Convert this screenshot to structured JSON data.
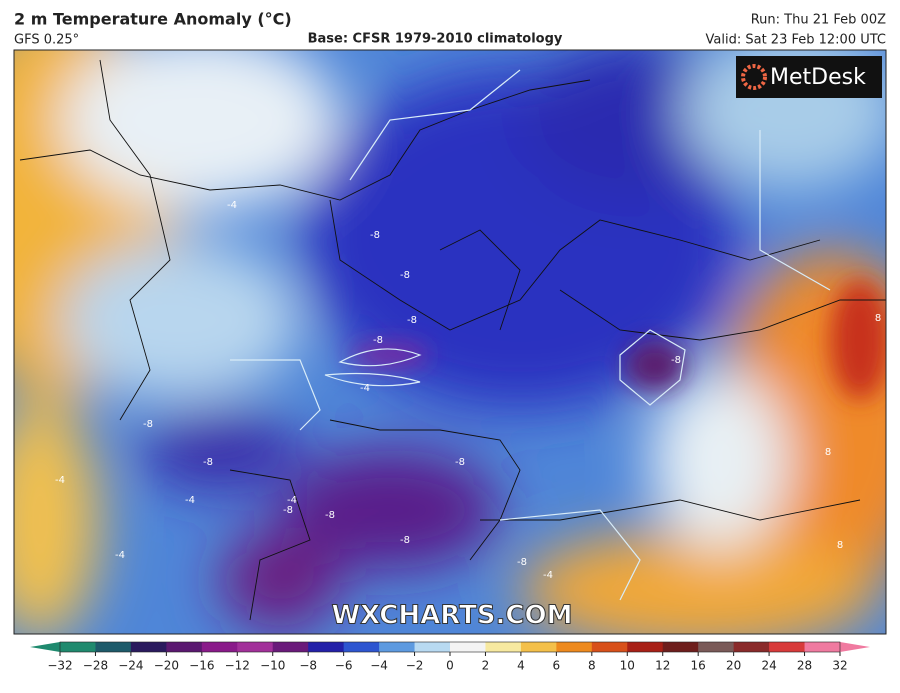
{
  "header": {
    "title": "2 m Temperature Anomaly (°C)",
    "model": "GFS 0.25°",
    "base": "Base: CFSR 1979-2010 climatology",
    "run": "Run: Thu 21 Feb 00Z",
    "valid": "Valid: Sat 23 Feb 12:00 UTC"
  },
  "logo": "MetDesk",
  "watermark": "WXCHARTS.COM",
  "map": {
    "contour_labels": [
      "-4",
      "-8",
      "-8",
      "-8",
      "-8",
      "-4",
      "-8",
      "-8",
      "-8",
      "-8",
      "-4",
      "-8",
      "-8",
      "-8",
      "-8",
      "-4",
      "-4",
      "8",
      "8",
      "8",
      "-4",
      "-4"
    ]
  },
  "colorbar": {
    "ticks": [
      {
        "value": -32,
        "label": "−32"
      },
      {
        "value": -28,
        "label": "−28"
      },
      {
        "value": -24,
        "label": "−24"
      },
      {
        "value": -20,
        "label": "−20"
      },
      {
        "value": -16,
        "label": "−16"
      },
      {
        "value": -12,
        "label": "−12"
      },
      {
        "value": -10,
        "label": "−10"
      },
      {
        "value": -8,
        "label": "−8"
      },
      {
        "value": -6,
        "label": "−6"
      },
      {
        "value": -4,
        "label": "−4"
      },
      {
        "value": -2,
        "label": "−2"
      },
      0,
      2,
      4,
      6,
      8,
      10,
      12,
      16,
      20,
      24,
      28,
      32
    ],
    "colors": [
      "#1f8a6e",
      "#1d5a6a",
      "#2a1a5e",
      "#5a1870",
      "#8a1a8a",
      "#a2309a",
      "#6a1a7a",
      "#2320a8",
      "#2d55d0",
      "#5d9ae0",
      "#b8daf2",
      "#f4f4f4",
      "#f7e9a0",
      "#f4c04a",
      "#ee8a1e",
      "#d8501a",
      "#a82016",
      "#6e1e1c",
      "#7a5a58",
      "#8a2a2a",
      "#d83a3a",
      "#f07aa0"
    ]
  }
}
